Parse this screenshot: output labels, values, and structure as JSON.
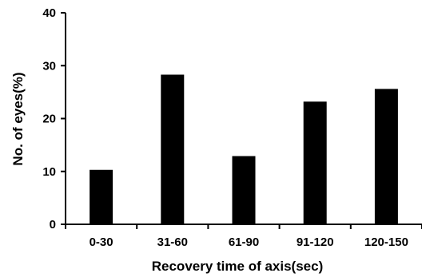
{
  "chart_data": {
    "type": "bar",
    "title": "",
    "xlabel": "Recovery time of axis(sec)",
    "ylabel": "No. of eyes(%)",
    "categories": [
      "0-30",
      "31-60",
      "61-90",
      "91-120",
      "120-150"
    ],
    "values": [
      10.3,
      28.3,
      12.9,
      23.2,
      25.6
    ],
    "ylim": [
      0,
      40
    ],
    "yticks": [
      "0",
      "10",
      "20",
      "30",
      "40"
    ],
    "grid": false,
    "legend": "none",
    "bar_color": "#000000"
  }
}
